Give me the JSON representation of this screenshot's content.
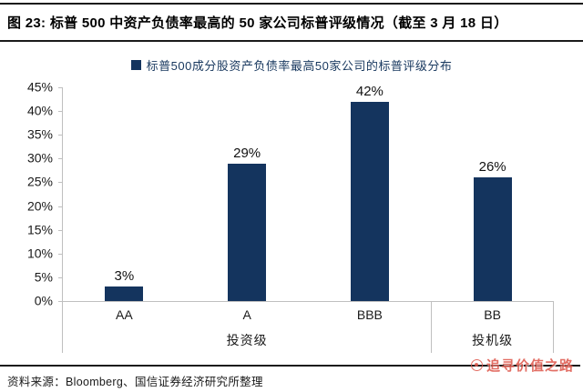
{
  "header": {
    "title": "图 23: 标普 500 中资产负债率最高的 50 家公司标普评级情况（截至 3 月 18 日）"
  },
  "legend": {
    "label": "标普500成分股资产负债率最高50家公司的标普评级分布"
  },
  "chart_data": {
    "type": "bar",
    "title": "标普500成分股资产负债率最高50家公司的标普评级分布",
    "categories": [
      "AA",
      "A",
      "BBB",
      "BB"
    ],
    "values": [
      3,
      29,
      42,
      26
    ],
    "data_labels": [
      "3%",
      "29%",
      "42%",
      "26%"
    ],
    "groups": [
      {
        "label": "投资级",
        "span": [
          "AA",
          "A",
          "BBB"
        ]
      },
      {
        "label": "投机级",
        "span": [
          "BB"
        ]
      }
    ],
    "xlabel": "",
    "ylabel": "",
    "ylim": [
      0,
      45
    ],
    "ytick_step": 5,
    "yticks": [
      "45%",
      "40%",
      "35%",
      "30%",
      "25%",
      "20%",
      "15%",
      "10%",
      "5%",
      "0%"
    ],
    "grid": false,
    "legend_position": "top"
  },
  "colors": {
    "bar": "#14345e",
    "legend_text": "#17375e",
    "axis": "#bfbfbf",
    "watermark": "#de5549"
  },
  "footer": {
    "source": "资料来源：Bloomberg、国信证券经济研究所整理",
    "watermark": "追寻价值之路"
  }
}
